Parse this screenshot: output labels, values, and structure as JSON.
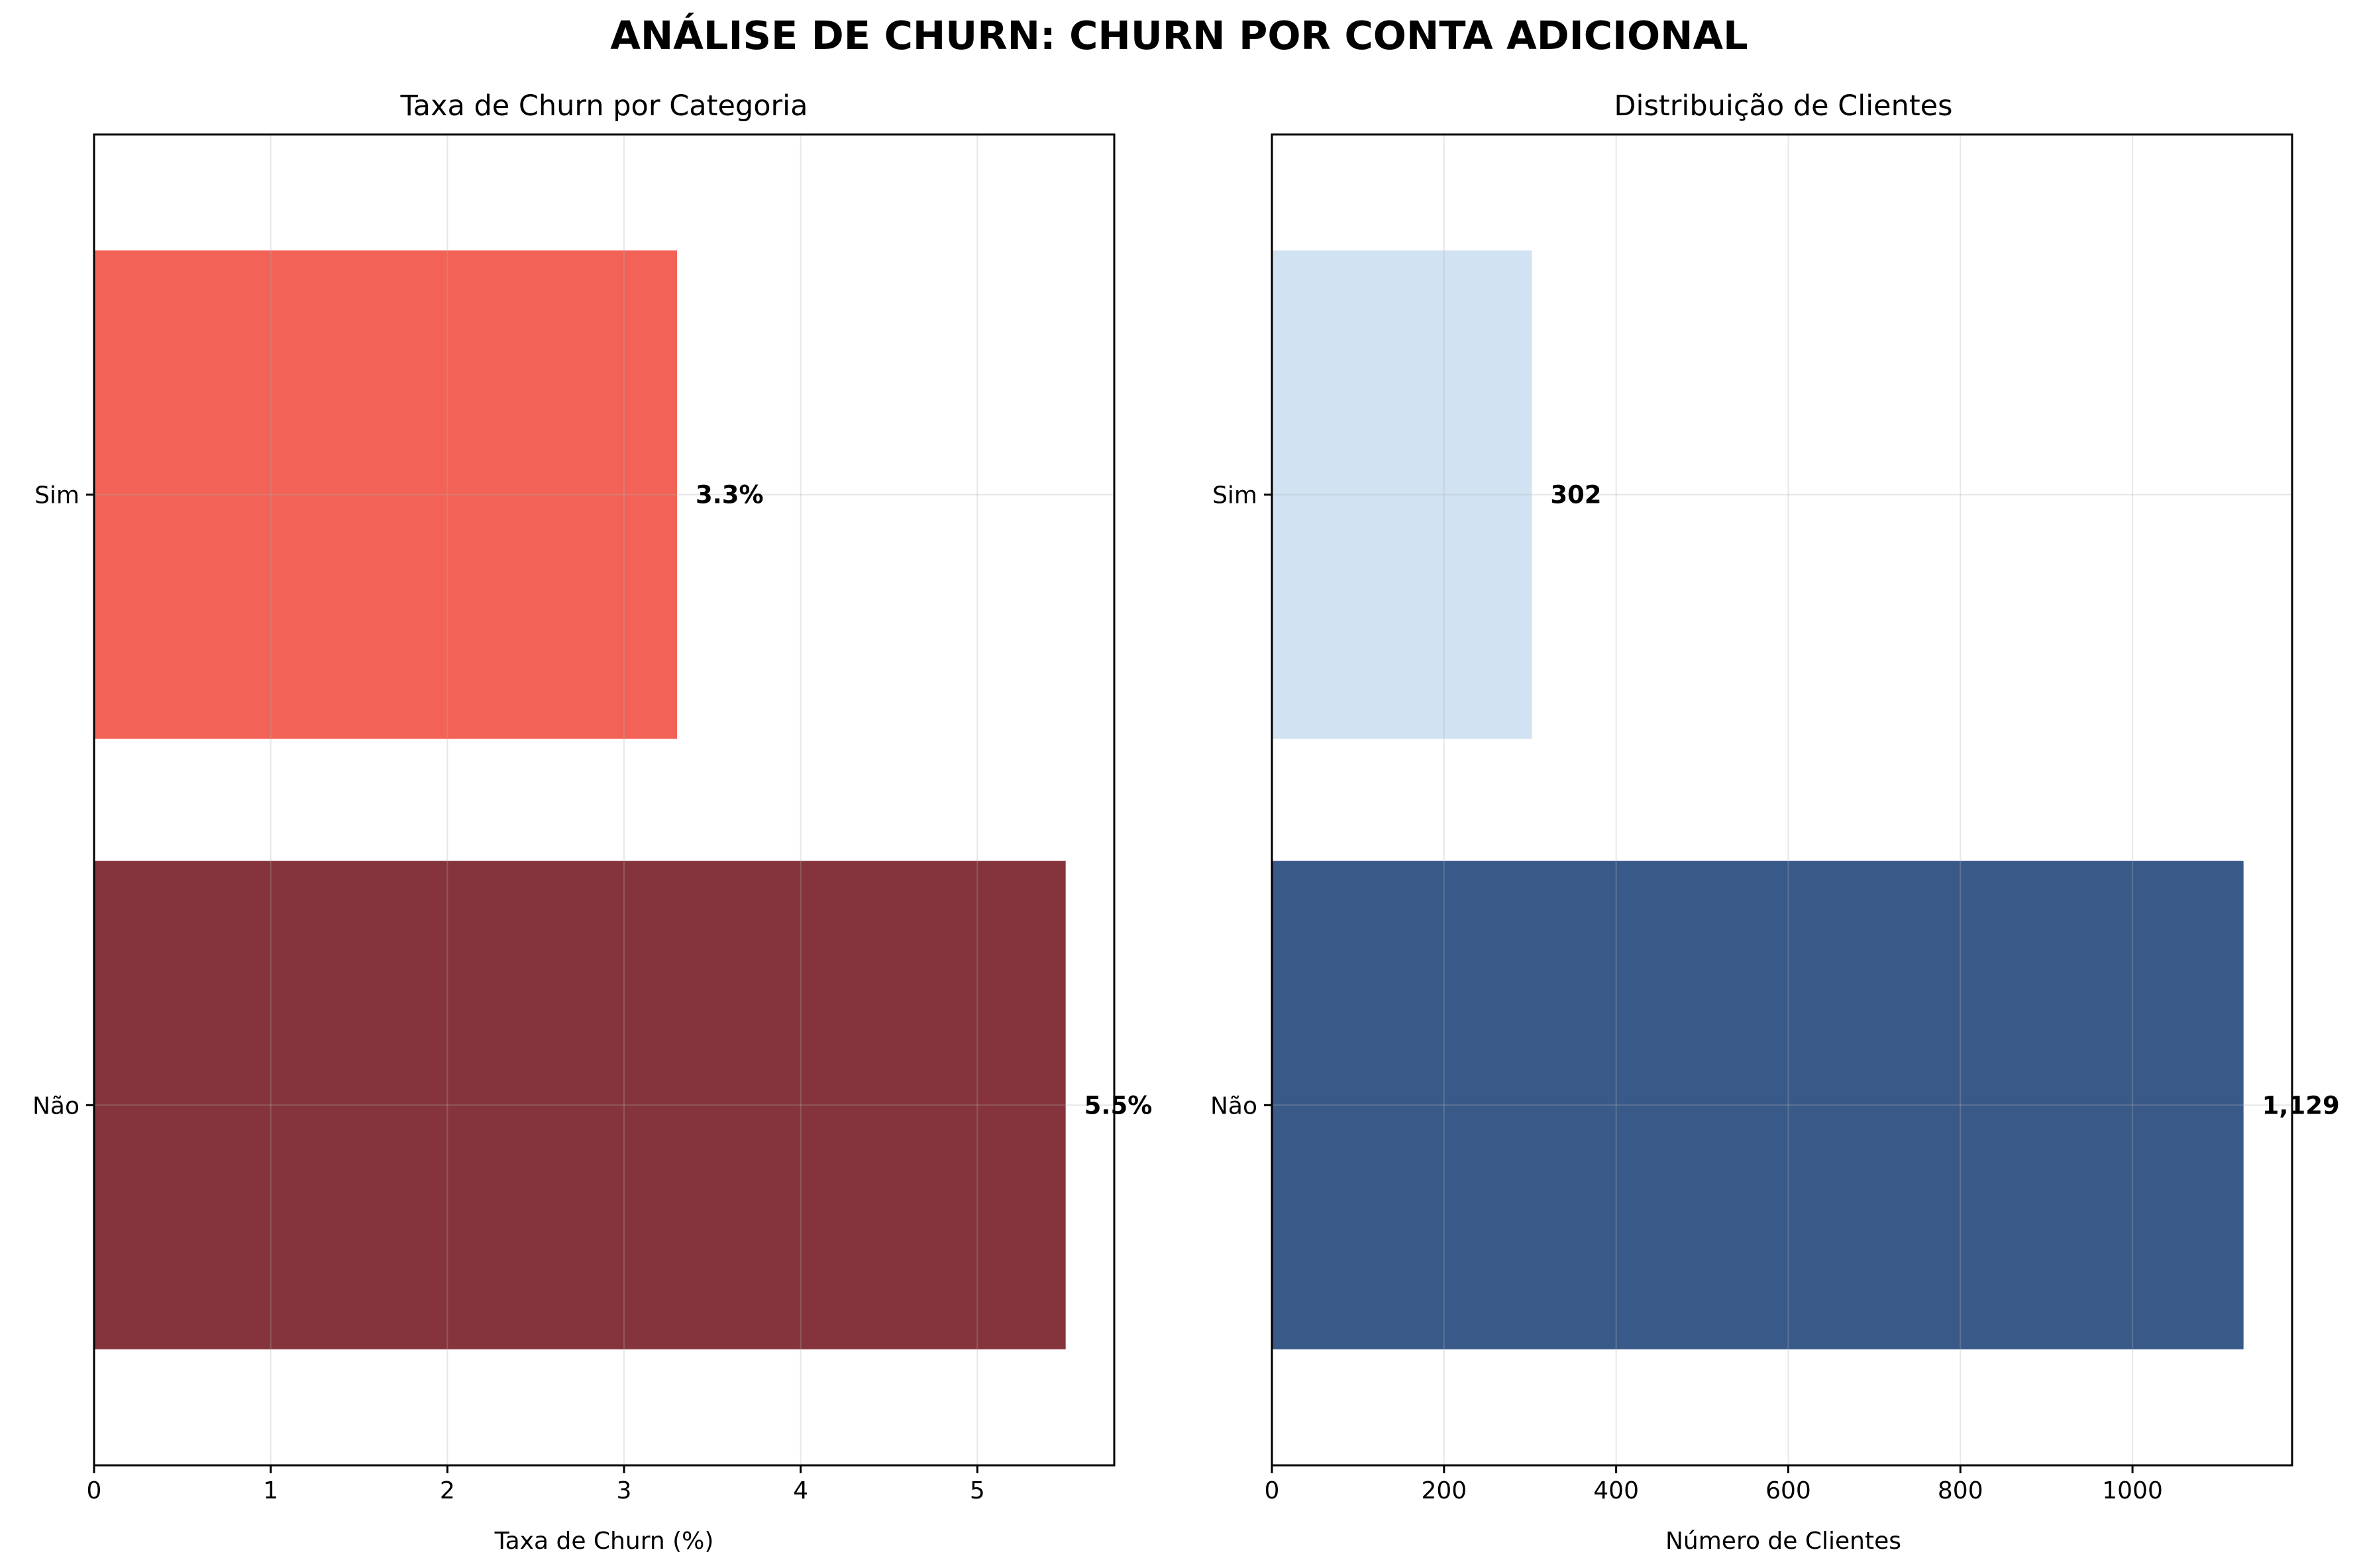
{
  "suptitle": "ANÁLISE DE CHURN: CHURN POR CONTA ADICIONAL",
  "chart_data": [
    {
      "type": "bar",
      "orientation": "horizontal",
      "title": "Taxa de Churn por Categoria",
      "xlabel": "Taxa de Churn (%)",
      "ylabel": "",
      "categories": [
        "Não",
        "Sim"
      ],
      "values": [
        5.5,
        3.3
      ],
      "data_labels": [
        "5.5%",
        "3.3%"
      ],
      "bar_colors": [
        "#67000d",
        "#ef3b2c"
      ],
      "bar_opacity": 0.8,
      "xlim": [
        0,
        5.775
      ],
      "xticks": [
        0,
        1,
        2,
        3,
        4,
        5
      ],
      "grid": true,
      "legend": "none"
    },
    {
      "type": "bar",
      "orientation": "horizontal",
      "title": "Distribuição de Clientes",
      "xlabel": "Número de Clientes",
      "ylabel": "",
      "categories": [
        "Não",
        "Sim"
      ],
      "values": [
        1129,
        302
      ],
      "data_labels": [
        "1,129",
        "302"
      ],
      "bar_colors": [
        "#08306b",
        "#c6dbef"
      ],
      "bar_opacity": 0.8,
      "xlim": [
        0,
        1185.45
      ],
      "xticks": [
        0,
        200,
        400,
        600,
        800,
        1000
      ],
      "grid": true,
      "legend": "none"
    }
  ]
}
